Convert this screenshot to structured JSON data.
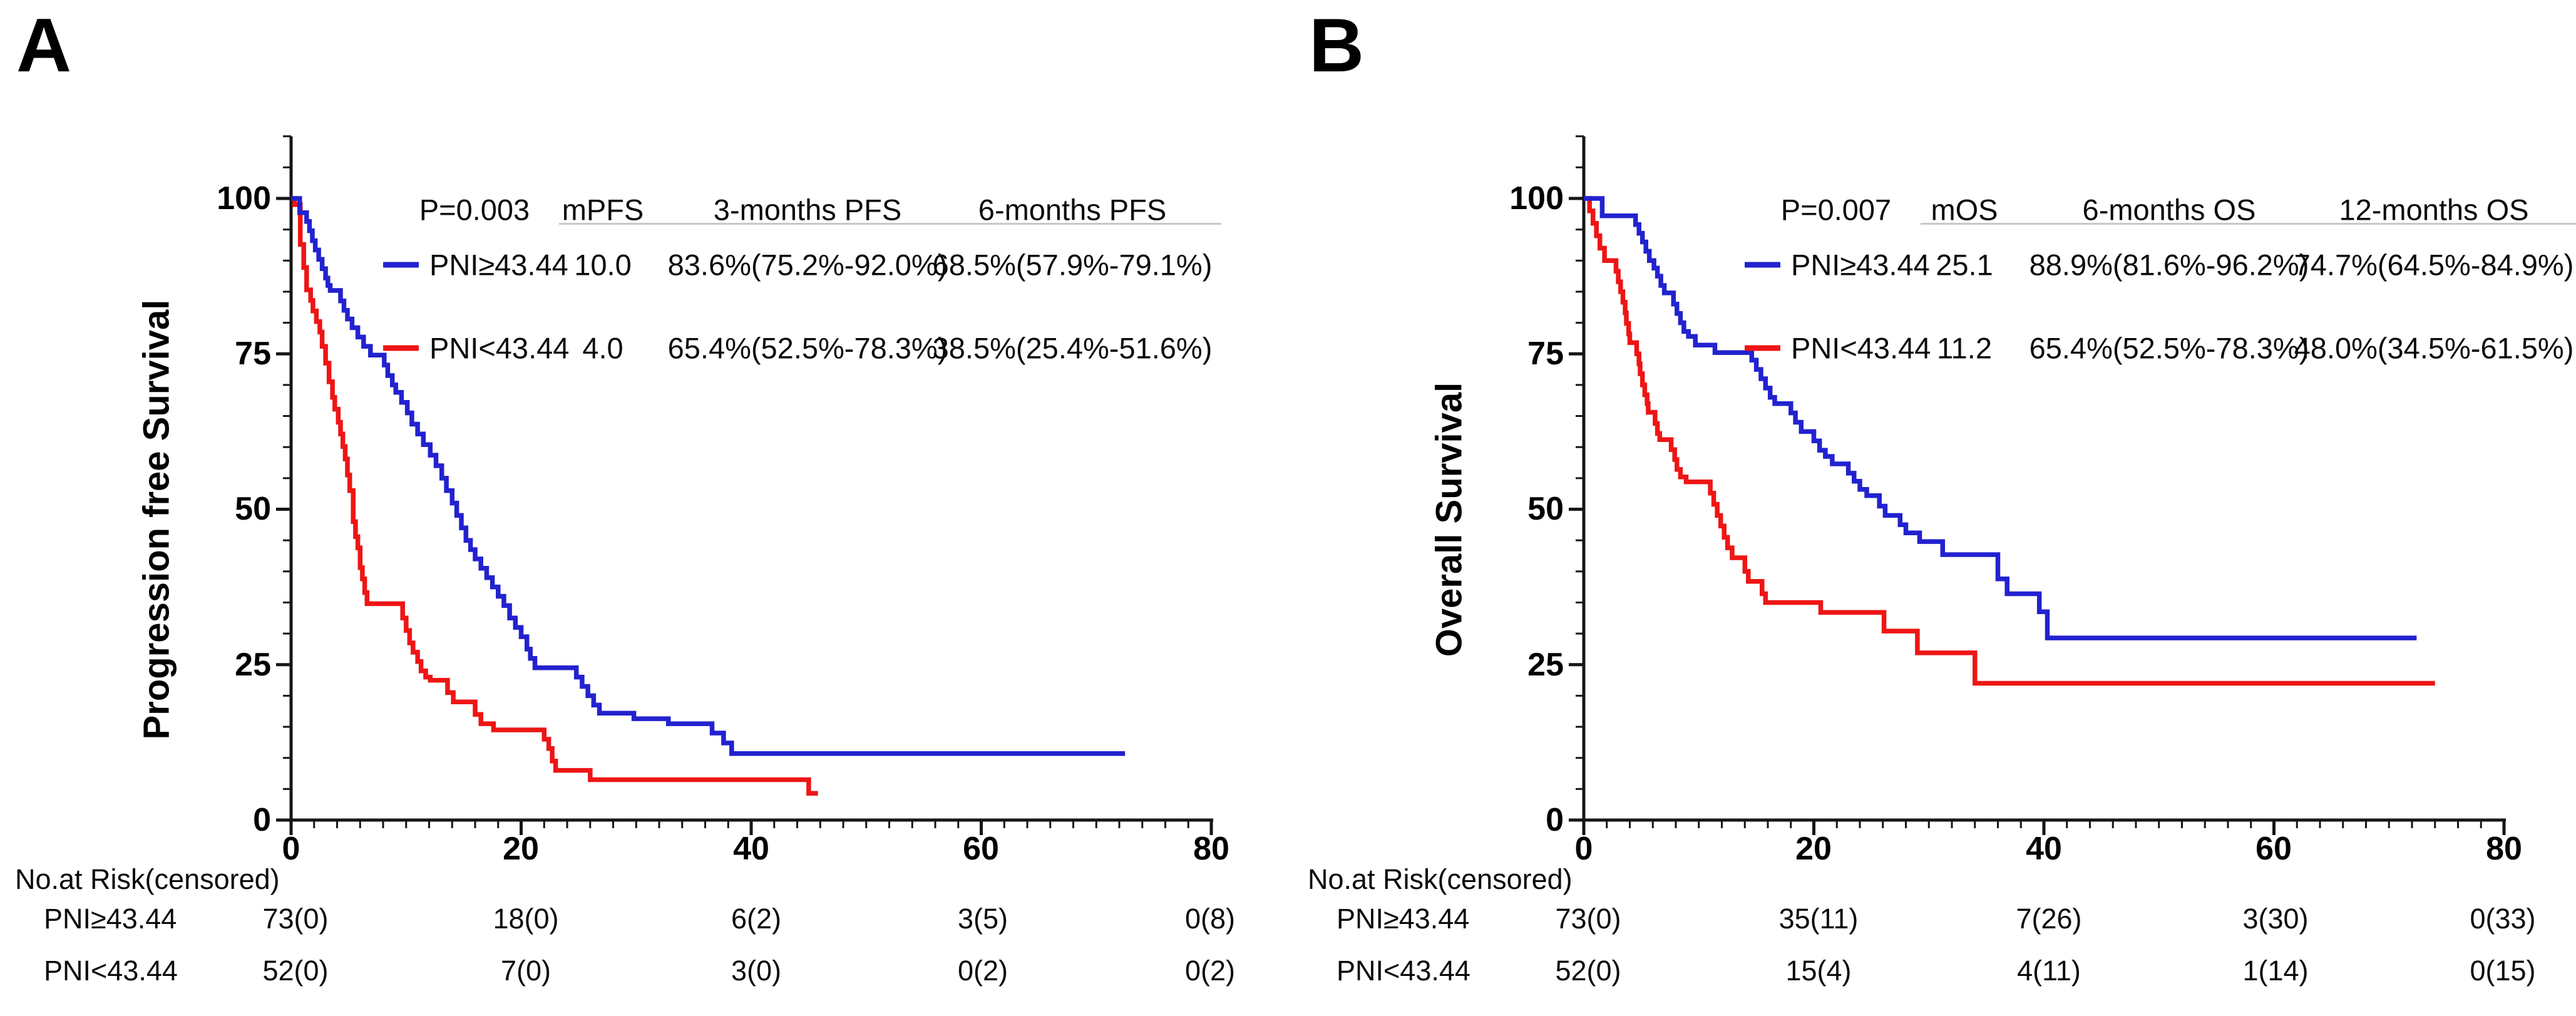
{
  "figure": {
    "background_color": "#ffffff",
    "curve_color_high_pni": "#2222cf",
    "curve_color_low_pni": "#ee1515",
    "axis_color": "#161616",
    "header_underline_color": "#c7c7c7"
  },
  "panels": [
    {
      "letter": "A",
      "y_axis_label": "Progression free Survival",
      "x_tick_labels": [
        "0",
        "20",
        "40",
        "60",
        "80"
      ],
      "y_tick_labels": [
        "100",
        "75",
        "50",
        "25",
        "0"
      ],
      "legend": {
        "headers": [
          "P=0.003",
          "mPFS",
          "3-months PFS",
          "6-months PFS"
        ],
        "rows": [
          {
            "name": "PNI≥43.44",
            "color": "#2222cf",
            "median": "10.0",
            "stat1": "83.6%(75.2%-92.0%)",
            "stat2": "68.5%(57.9%-79.1%)"
          },
          {
            "name": "PNI<43.44",
            "color": "#ee1515",
            "median": "4.0",
            "stat1": "65.4%(52.5%-78.3%)",
            "stat2": "38.5%(25.4%-51.6%)"
          }
        ]
      },
      "risk_table": {
        "title": "No.at Risk(censored)",
        "rows": [
          {
            "label": "PNI≥43.44",
            "values": [
              "73(0)",
              "18(0)",
              "6(2)",
              "3(5)",
              "0(8)"
            ]
          },
          {
            "label": "PNI<43.44",
            "values": [
              "52(0)",
              "7(0)",
              "3(0)",
              "0(2)",
              "0(2)"
            ]
          }
        ]
      }
    },
    {
      "letter": "B",
      "y_axis_label": "Overall Survival",
      "x_tick_labels": [
        "0",
        "20",
        "40",
        "60",
        "80"
      ],
      "y_tick_labels": [
        "100",
        "75",
        "50",
        "25",
        "0"
      ],
      "legend": {
        "headers": [
          "P=0.007",
          "mOS",
          "6-months OS",
          "12-months OS"
        ],
        "rows": [
          {
            "name": "PNI≥43.44",
            "color": "#2222cf",
            "median": "25.1",
            "stat1": "88.9%(81.6%-96.2%)",
            "stat2": "74.7%(64.5%-84.9%)"
          },
          {
            "name": "PNI<43.44",
            "color": "#ee1515",
            "median": "11.2",
            "stat1": "65.4%(52.5%-78.3%)",
            "stat2": "48.0%(34.5%-61.5%)"
          }
        ]
      },
      "risk_table": {
        "title": "No.at Risk(censored)",
        "rows": [
          {
            "label": "PNI≥43.44",
            "values": [
              "73(0)",
              "35(11)",
              "7(26)",
              "3(30)",
              "0(33)"
            ]
          },
          {
            "label": "PNI<43.44",
            "values": [
              "52(0)",
              "15(4)",
              "4(11)",
              "1(14)",
              "0(15)"
            ]
          }
        ]
      }
    }
  ],
  "chart_data": [
    {
      "type": "line",
      "chart_style": "kaplan_meier_step",
      "panel": "A",
      "title": "Progression free Survival",
      "p_value": "P=0.003",
      "xlabel": "",
      "ylabel": "Progression free Survival",
      "xlim": [
        0,
        80
      ],
      "ylim": [
        0,
        100
      ],
      "x_ticks": [
        0,
        20,
        40,
        60,
        80
      ],
      "y_ticks": [
        0,
        25,
        50,
        75,
        100
      ],
      "x_minor_tick_step": 2,
      "y_minor_tick_step": 5,
      "grid": false,
      "series": [
        {
          "name": "PNI≥43.44",
          "color": "#2222cf",
          "median_months": 10.0,
          "steps": [
            [
              0,
              100
            ],
            [
              0.75,
              97.7
            ],
            [
              1.35,
              96.3
            ],
            [
              1.6,
              94.8
            ],
            [
              1.85,
              93.2
            ],
            [
              2.1,
              91.7
            ],
            [
              2.4,
              90.2
            ],
            [
              2.7,
              88.7
            ],
            [
              3,
              87.2
            ],
            [
              3.2,
              86
            ],
            [
              3.4,
              85.2
            ],
            [
              4.3,
              83.5
            ],
            [
              4.6,
              82
            ],
            [
              4.9,
              80.6
            ],
            [
              5.3,
              79.2
            ],
            [
              5.8,
              77.7
            ],
            [
              6.3,
              76.2
            ],
            [
              6.9,
              74.8
            ],
            [
              8.1,
              73.2
            ],
            [
              8.4,
              71.5
            ],
            [
              8.8,
              70
            ],
            [
              9.1,
              68.8
            ],
            [
              9.6,
              67.2
            ],
            [
              10.1,
              65.5
            ],
            [
              10.5,
              63.7
            ],
            [
              11,
              62.1
            ],
            [
              11.5,
              60.4
            ],
            [
              12.1,
              58.7
            ],
            [
              12.6,
              57
            ],
            [
              13.1,
              55
            ],
            [
              13.5,
              53
            ],
            [
              14,
              51
            ],
            [
              14.4,
              49
            ],
            [
              14.8,
              47
            ],
            [
              15.2,
              45
            ],
            [
              15.6,
              43.5
            ],
            [
              16,
              42
            ],
            [
              16.5,
              40.5
            ],
            [
              17,
              39
            ],
            [
              17.5,
              37.5
            ],
            [
              18,
              36
            ],
            [
              18.5,
              34.5
            ],
            [
              19,
              32.5
            ],
            [
              19.5,
              31
            ],
            [
              20,
              29.5
            ],
            [
              20.5,
              27.5
            ],
            [
              20.8,
              26
            ],
            [
              21.2,
              24.5
            ],
            [
              24.8,
              23
            ],
            [
              25.3,
              21.5
            ],
            [
              25.8,
              20
            ],
            [
              26.3,
              18.5
            ],
            [
              26.8,
              17.2
            ],
            [
              29.8,
              16.3
            ],
            [
              32.8,
              15.5
            ],
            [
              36.6,
              14
            ],
            [
              37.6,
              12.4
            ],
            [
              38.3,
              10.7
            ],
            [
              72.5,
              10.7
            ]
          ]
        },
        {
          "name": "PNI<43.44",
          "color": "#ee1515",
          "median_months": 4.0,
          "steps": [
            [
              0,
              100
            ],
            [
              0.3,
              99
            ],
            [
              0.8,
              92.6
            ],
            [
              1.1,
              88.9
            ],
            [
              1.35,
              85.3
            ],
            [
              1.7,
              83.6
            ],
            [
              1.9,
              81.9
            ],
            [
              2.2,
              80.2
            ],
            [
              2.5,
              78.5
            ],
            [
              2.7,
              76.2
            ],
            [
              3,
              73.5
            ],
            [
              3.3,
              70.5
            ],
            [
              3.6,
              68
            ],
            [
              3.8,
              66.1
            ],
            [
              4.1,
              64
            ],
            [
              4.3,
              62.1
            ],
            [
              4.5,
              60.1
            ],
            [
              4.7,
              58.1
            ],
            [
              4.9,
              55.5
            ],
            [
              5.1,
              53
            ],
            [
              5.4,
              48
            ],
            [
              5.6,
              45.6
            ],
            [
              5.8,
              43.8
            ],
            [
              6,
              40.6
            ],
            [
              6.2,
              38.8
            ],
            [
              6.4,
              36.6
            ],
            [
              6.6,
              34.8
            ],
            [
              9.7,
              32.5
            ],
            [
              10,
              30.5
            ],
            [
              10.3,
              28.5
            ],
            [
              10.6,
              27
            ],
            [
              11,
              25.5
            ],
            [
              11.3,
              24
            ],
            [
              11.7,
              23
            ],
            [
              12.1,
              22.5
            ],
            [
              13.6,
              20.5
            ],
            [
              14.1,
              19
            ],
            [
              16,
              17
            ],
            [
              16.5,
              15.5
            ],
            [
              17.6,
              14.5
            ],
            [
              22,
              13
            ],
            [
              22.4,
              11.5
            ],
            [
              22.7,
              9.5
            ],
            [
              23,
              8
            ],
            [
              26,
              6.5
            ],
            [
              45,
              4.3
            ],
            [
              45.8,
              4.3
            ]
          ]
        }
      ]
    },
    {
      "type": "line",
      "chart_style": "kaplan_meier_step",
      "panel": "B",
      "title": "Overall Survival",
      "p_value": "P=0.007",
      "xlabel": "",
      "ylabel": "Overall Survival",
      "xlim": [
        0,
        80
      ],
      "ylim": [
        0,
        100
      ],
      "x_ticks": [
        0,
        20,
        40,
        60,
        80
      ],
      "y_ticks": [
        0,
        25,
        50,
        75,
        100
      ],
      "x_minor_tick_step": 2,
      "y_minor_tick_step": 5,
      "grid": false,
      "series": [
        {
          "name": "PNI≥43.44",
          "color": "#2222cf",
          "median_months": 25.1,
          "steps": [
            [
              0,
              100
            ],
            [
              1.6,
              97.2
            ],
            [
              4.5,
              95.8
            ],
            [
              4.8,
              94.4
            ],
            [
              5.1,
              93
            ],
            [
              5.4,
              91.5
            ],
            [
              5.7,
              90
            ],
            [
              6.1,
              88.8
            ],
            [
              6.4,
              87.5
            ],
            [
              6.7,
              86
            ],
            [
              7,
              84.8
            ],
            [
              7.8,
              83
            ],
            [
              8.1,
              81.5
            ],
            [
              8.4,
              80
            ],
            [
              8.7,
              78.6
            ],
            [
              9.1,
              77.8
            ],
            [
              9.7,
              76.4
            ],
            [
              11.4,
              75.2
            ],
            [
              14.6,
              74
            ],
            [
              15,
              72.5
            ],
            [
              15.4,
              71
            ],
            [
              15.8,
              69.5
            ],
            [
              16.2,
              68
            ],
            [
              16.6,
              67
            ],
            [
              18,
              65.5
            ],
            [
              18.4,
              64
            ],
            [
              18.9,
              62.5
            ],
            [
              20,
              61
            ],
            [
              20.5,
              59.5
            ],
            [
              21,
              58.5
            ],
            [
              21.6,
              57.3
            ],
            [
              23,
              55.8
            ],
            [
              23.5,
              54.5
            ],
            [
              24,
              53.2
            ],
            [
              24.6,
              52.2
            ],
            [
              25.7,
              50.5
            ],
            [
              26.2,
              49
            ],
            [
              27.5,
              47.5
            ],
            [
              28,
              46.2
            ],
            [
              29.2,
              44.8
            ],
            [
              31.2,
              42.7
            ],
            [
              36,
              38.8
            ],
            [
              36.8,
              36.4
            ],
            [
              39.6,
              33.5
            ],
            [
              40.3,
              29.3
            ],
            [
              72.4,
              29.3
            ]
          ]
        },
        {
          "name": "PNI<43.44",
          "color": "#ee1515",
          "median_months": 11.2,
          "steps": [
            [
              0,
              100
            ],
            [
              0.5,
              98
            ],
            [
              0.8,
              96
            ],
            [
              1.1,
              94
            ],
            [
              1.4,
              92
            ],
            [
              1.8,
              90
            ],
            [
              2.8,
              88.3
            ],
            [
              3,
              86.6
            ],
            [
              3.2,
              85
            ],
            [
              3.4,
              83.3
            ],
            [
              3.6,
              81.6
            ],
            [
              3.7,
              79.9
            ],
            [
              3.9,
              78.2
            ],
            [
              4,
              76.8
            ],
            [
              4.6,
              75
            ],
            [
              4.8,
              73.4
            ],
            [
              4.9,
              71.8
            ],
            [
              5.1,
              70
            ],
            [
              5.3,
              68.4
            ],
            [
              5.5,
              67
            ],
            [
              5.6,
              65.6
            ],
            [
              6.2,
              63.8
            ],
            [
              6.4,
              62.2
            ],
            [
              6.6,
              61.2
            ],
            [
              7.6,
              59.6
            ],
            [
              7.9,
              58
            ],
            [
              8.1,
              56.4
            ],
            [
              8.4,
              55.2
            ],
            [
              8.9,
              54.4
            ],
            [
              11,
              52.6
            ],
            [
              11.3,
              50.8
            ],
            [
              11.6,
              49
            ],
            [
              11.9,
              47.3
            ],
            [
              12.2,
              45.5
            ],
            [
              12.5,
              43.8
            ],
            [
              12.9,
              42.2
            ],
            [
              14,
              40
            ],
            [
              14.3,
              38.4
            ],
            [
              15.5,
              36.4
            ],
            [
              15.8,
              35
            ],
            [
              20.6,
              33.4
            ],
            [
              26.1,
              30.4
            ],
            [
              29,
              26.9
            ],
            [
              34,
              22
            ],
            [
              74,
              22
            ]
          ]
        }
      ]
    }
  ]
}
